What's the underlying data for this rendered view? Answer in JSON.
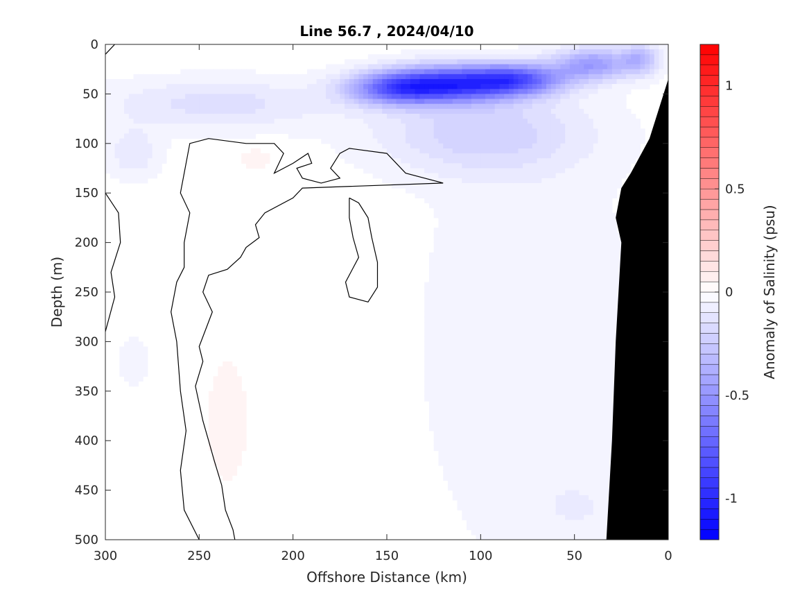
{
  "chart_data": {
    "type": "heatmap",
    "title": "Line 56.7 , 2024/04/10",
    "xlabel": "Offshore Distance (km)",
    "ylabel": "Depth (m)",
    "colorbar_label": "Anomaly of Salinity (psu)",
    "xlim": [
      300,
      0
    ],
    "ylim": [
      500,
      0
    ],
    "x_ticks": [
      300,
      250,
      200,
      150,
      100,
      50,
      0
    ],
    "y_ticks": [
      0,
      50,
      100,
      150,
      200,
      250,
      300,
      350,
      400,
      450,
      500
    ],
    "colorbar_range": [
      -1.2,
      1.2
    ],
    "colorbar_ticks": [
      1,
      0.5,
      0,
      -0.5,
      -1
    ],
    "colorbar_step": 0.05,
    "colors": {
      "negative": "#0000ff",
      "positive": "#ff0000",
      "neutral": "#ffffff",
      "bathymetry": "#000000",
      "contour": "#000000"
    },
    "anomaly_fields": [
      {
        "x": 115,
        "depth": 40,
        "value": -0.85,
        "sx": 35,
        "sy": 18
      },
      {
        "x": 80,
        "depth": 35,
        "value": -0.6,
        "sx": 25,
        "sy": 15
      },
      {
        "x": 145,
        "depth": 45,
        "value": -0.55,
        "sx": 25,
        "sy": 16
      },
      {
        "x": 40,
        "depth": 20,
        "value": -0.45,
        "sx": 20,
        "sy": 16
      },
      {
        "x": 15,
        "depth": 15,
        "value": -0.3,
        "sx": 10,
        "sy": 15
      },
      {
        "x": 100,
        "depth": 90,
        "value": -0.2,
        "sx": 55,
        "sy": 40
      },
      {
        "x": 240,
        "depth": 60,
        "value": -0.15,
        "sx": 60,
        "sy": 25
      },
      {
        "x": 285,
        "depth": 110,
        "value": -0.12,
        "sx": 14,
        "sy": 25
      },
      {
        "x": 75,
        "depth": 300,
        "value": -0.07,
        "sx": 55,
        "sy": 220
      },
      {
        "x": 45,
        "depth": 470,
        "value": -0.05,
        "sx": 30,
        "sy": 40
      },
      {
        "x": 285,
        "depth": 320,
        "value": -0.05,
        "sx": 10,
        "sy": 30
      },
      {
        "x": 235,
        "depth": 380,
        "value": 0.05,
        "sx": 12,
        "sy": 70
      },
      {
        "x": 220,
        "depth": 115,
        "value": 0.05,
        "sx": 10,
        "sy": 12
      }
    ],
    "zero_contours": [
      [
        [
          300,
          10
        ],
        [
          295,
          0
        ]
      ],
      [
        [
          300,
          150
        ],
        [
          293,
          170
        ],
        [
          292,
          200
        ],
        [
          297,
          230
        ],
        [
          295,
          255
        ],
        [
          300,
          290
        ]
      ],
      [
        [
          250,
          500
        ],
        [
          258,
          470
        ],
        [
          260,
          430
        ],
        [
          257,
          390
        ],
        [
          260,
          350
        ],
        [
          262,
          300
        ],
        [
          265,
          270
        ],
        [
          262,
          240
        ],
        [
          258,
          225
        ],
        [
          258,
          200
        ],
        [
          255,
          170
        ],
        [
          260,
          150
        ],
        [
          255,
          100
        ],
        [
          245,
          95
        ],
        [
          225,
          100
        ],
        [
          210,
          100
        ],
        [
          205,
          110
        ],
        [
          210,
          130
        ],
        [
          200,
          120
        ],
        [
          192,
          110
        ],
        [
          190,
          120
        ],
        [
          198,
          125
        ],
        [
          195,
          135
        ],
        [
          185,
          140
        ],
        [
          175,
          135
        ],
        [
          180,
          125
        ],
        [
          175,
          110
        ],
        [
          170,
          105
        ],
        [
          150,
          110
        ],
        [
          140,
          130
        ],
        [
          120,
          140
        ],
        [
          195,
          145
        ],
        [
          200,
          155
        ],
        [
          215,
          170
        ],
        [
          220,
          182
        ],
        [
          218,
          195
        ],
        [
          225,
          205
        ],
        [
          228,
          215
        ],
        [
          235,
          227
        ],
        [
          245,
          233
        ],
        [
          248,
          250
        ],
        [
          243,
          270
        ],
        [
          246,
          285
        ],
        [
          250,
          305
        ],
        [
          248,
          320
        ],
        [
          252,
          345
        ],
        [
          248,
          380
        ],
        [
          245,
          400
        ],
        [
          242,
          420
        ],
        [
          238,
          445
        ],
        [
          236,
          470
        ],
        [
          232,
          490
        ],
        [
          231,
          500
        ]
      ],
      [
        [
          170,
          155
        ],
        [
          165,
          160
        ],
        [
          160,
          175
        ],
        [
          158,
          195
        ],
        [
          155,
          220
        ],
        [
          155,
          245
        ],
        [
          160,
          260
        ],
        [
          170,
          255
        ],
        [
          172,
          240
        ],
        [
          165,
          215
        ],
        [
          168,
          195
        ],
        [
          170,
          175
        ],
        [
          170,
          155
        ]
      ]
    ],
    "bathymetry_outline": [
      [
        0,
        35
      ],
      [
        5,
        65
      ],
      [
        10,
        95
      ],
      [
        20,
        130
      ],
      [
        25,
        145
      ],
      [
        28,
        175
      ],
      [
        25,
        200
      ],
      [
        28,
        300
      ],
      [
        30,
        400
      ],
      [
        33,
        500
      ],
      [
        0,
        500
      ]
    ]
  }
}
